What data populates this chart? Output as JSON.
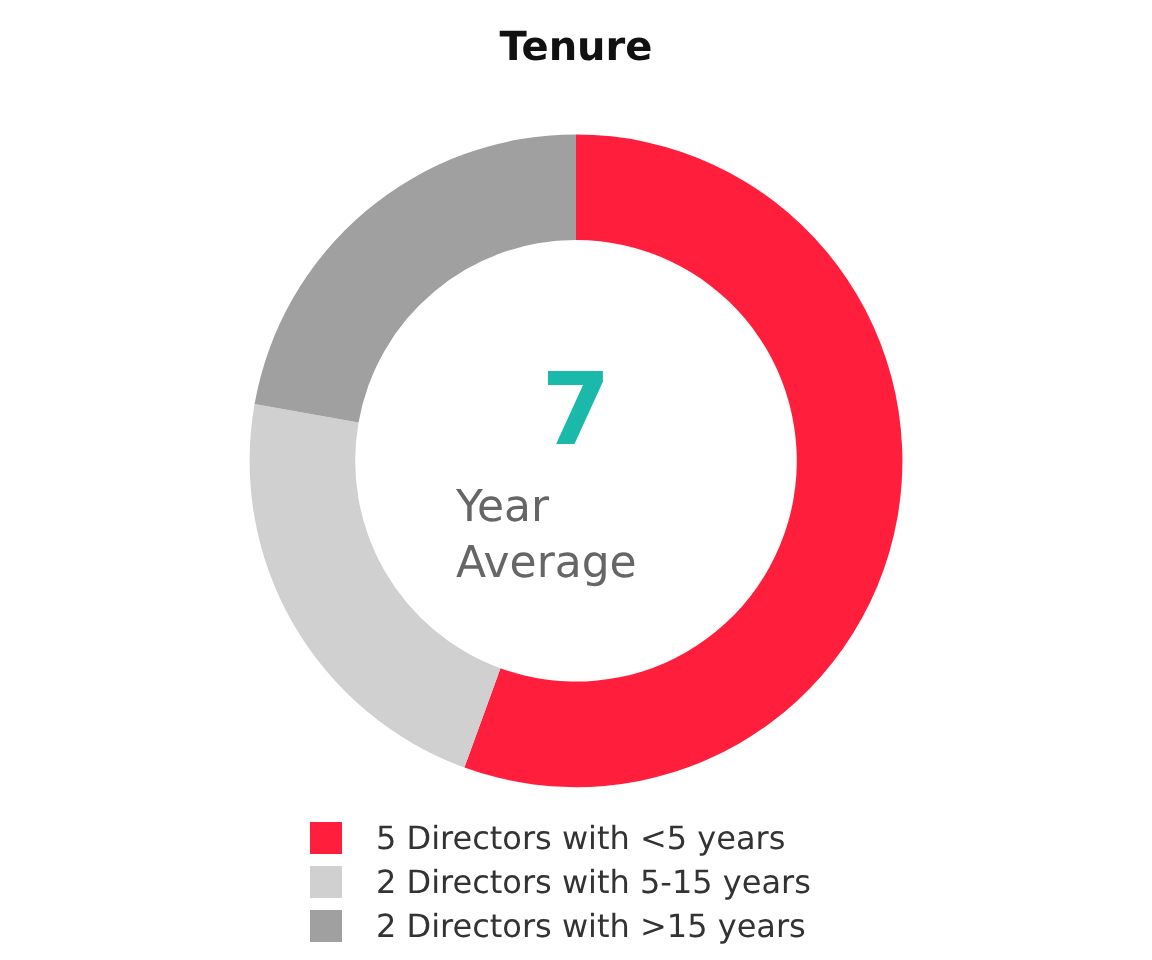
{
  "chart_data": {
    "type": "donut",
    "title": "Tenure",
    "categories": [
      "5 Directors with <5 years",
      "2 Directors with 5-15 years",
      "2 Directors with >15 years"
    ],
    "values": [
      5,
      2,
      2
    ],
    "colors": [
      "#ff1f3d",
      "#d0d0d0",
      "#a0a0a0"
    ],
    "annotations": [
      "7",
      "Year Average"
    ],
    "legend": "bottom"
  }
}
